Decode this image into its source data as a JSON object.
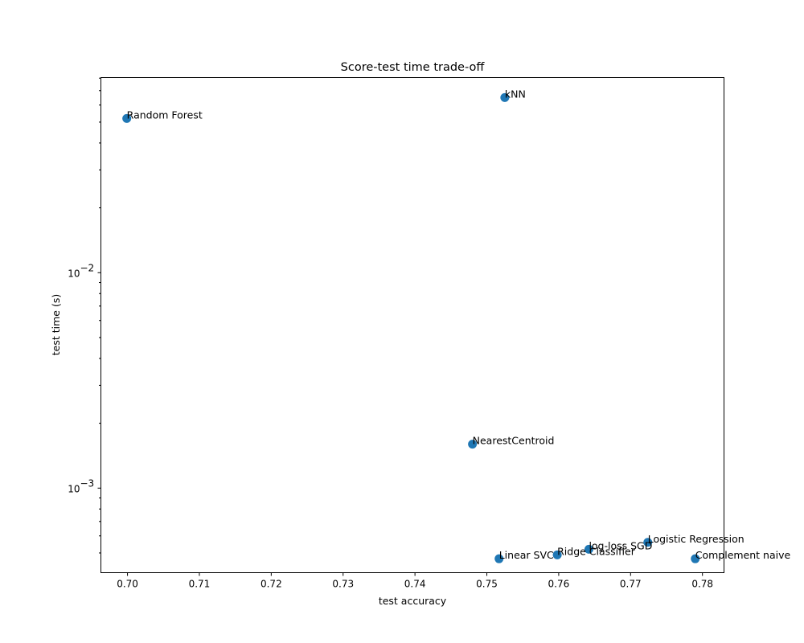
{
  "chart_data": {
    "type": "scatter",
    "title": "Score-test time trade-off",
    "xlabel": "test accuracy",
    "ylabel": "test time (s)",
    "xlim": [
      0.6963,
      0.783
    ],
    "ylim": [
      0.000405,
      0.0805
    ],
    "yscale": "log",
    "grid": false,
    "marker_color": "#1f77b4",
    "x_ticks": [
      {
        "value": 0.7,
        "label": "0.70"
      },
      {
        "value": 0.71,
        "label": "0.71"
      },
      {
        "value": 0.72,
        "label": "0.72"
      },
      {
        "value": 0.73,
        "label": "0.73"
      },
      {
        "value": 0.74,
        "label": "0.74"
      },
      {
        "value": 0.75,
        "label": "0.75"
      },
      {
        "value": 0.76,
        "label": "0.76"
      },
      {
        "value": 0.77,
        "label": "0.77"
      },
      {
        "value": 0.78,
        "label": "0.78"
      }
    ],
    "y_major_ticks": [
      {
        "value": 0.001,
        "base": "10",
        "exp": "−3"
      },
      {
        "value": 0.01,
        "base": "10",
        "exp": "−2"
      }
    ],
    "y_minor_ticks": [
      0.0005,
      0.0006,
      0.0007,
      0.0008,
      0.0009,
      0.002,
      0.003,
      0.004,
      0.005,
      0.006,
      0.007,
      0.008,
      0.009,
      0.02,
      0.03,
      0.04,
      0.05,
      0.06,
      0.07,
      0.08
    ],
    "points": [
      {
        "label": "Random Forest",
        "x": 0.6999,
        "y": 0.052
      },
      {
        "label": "kNN",
        "x": 0.7525,
        "y": 0.065
      },
      {
        "label": "NearestCentroid",
        "x": 0.748,
        "y": 0.0016
      },
      {
        "label": "Logistic Regression",
        "x": 0.7724,
        "y": 0.00056
      },
      {
        "label": "log-loss SGD",
        "x": 0.7642,
        "y": 0.00052
      },
      {
        "label": "Ridge Classifier",
        "x": 0.7598,
        "y": 0.00049
      },
      {
        "label": "Linear SVC",
        "x": 0.7517,
        "y": 0.00047
      },
      {
        "label": "Complement naive",
        "x": 0.779,
        "y": 0.00047
      }
    ]
  }
}
